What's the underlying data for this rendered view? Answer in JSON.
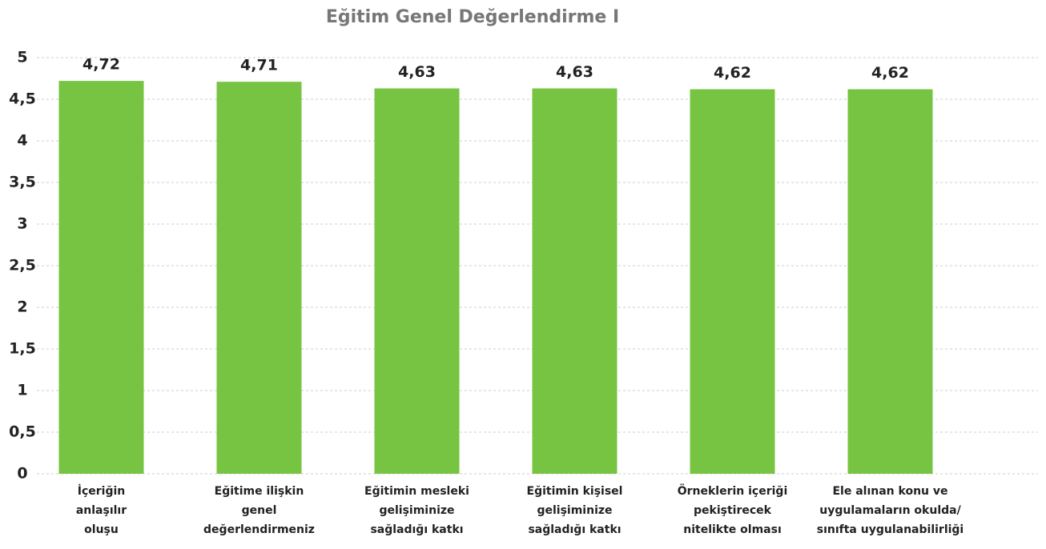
{
  "chart_data": {
    "type": "bar",
    "title": "Eğitim Genel Değerlendirme I",
    "categories": [
      "İçeriğin\nanlaşılır\noluşu",
      "Eğitime ilişkin\ngenel\ndeğerlendirmeniz",
      "Eğitimin mesleki\ngelişiminize\nsağladığı katkı",
      "Eğitimin kişisel\ngelişiminize\nsağladığı katkı",
      "Örneklerin içeriği\npekiştirecek\nnitelikte olması",
      "Ele alınan konu ve\nuygulamaların okulda/\nsınıfta uygulanabilirliği"
    ],
    "values": [
      4.72,
      4.71,
      4.63,
      4.63,
      4.62,
      4.62
    ],
    "value_labels": [
      "4,72",
      "4,71",
      "4,63",
      "4,63",
      "4,62",
      "4,62"
    ],
    "color": "#76c442",
    "ylim": [
      0,
      5
    ],
    "yticks": [
      0,
      {
        "value": 0.5,
        "label": "0,5"
      },
      1,
      {
        "value": 1.5,
        "label": "1,5"
      },
      2,
      {
        "value": 2.5,
        "label": "2,5"
      },
      3,
      {
        "value": 3.5,
        "label": "3,5"
      },
      4,
      {
        "value": 4.5,
        "label": "4,5"
      },
      5
    ],
    "grid": true
  }
}
